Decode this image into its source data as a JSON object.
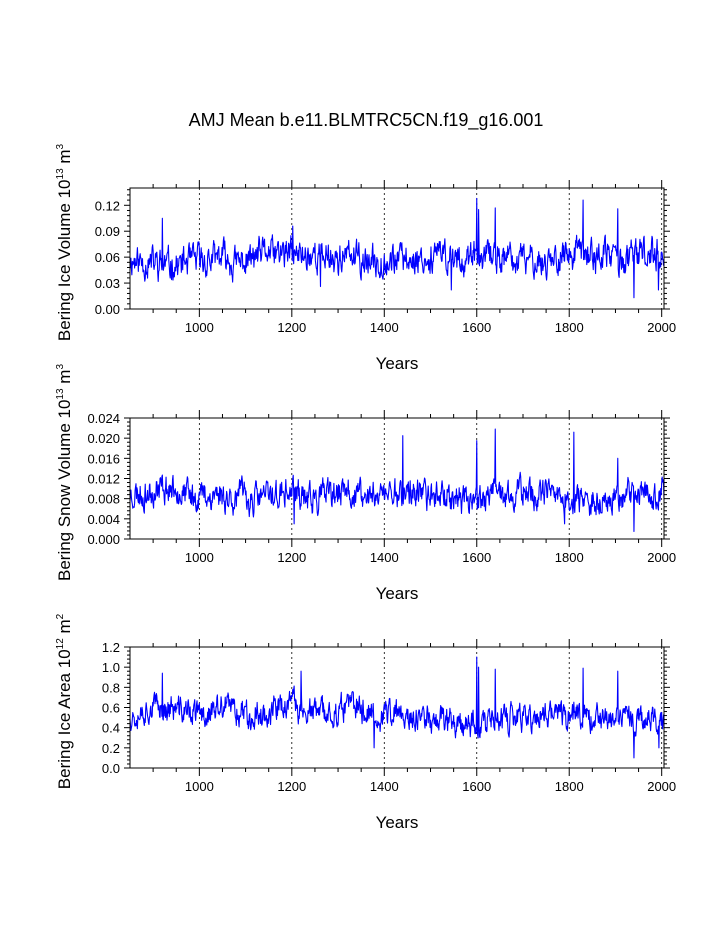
{
  "figure": {
    "title": "AMJ Mean b.e11.BLMTRC5CN.f19_g16.001"
  },
  "chart_data": [
    {
      "type": "line",
      "title": "",
      "xlabel": "Years",
      "ylabel": {
        "base": "Bering Ice Volume 10",
        "exp": "13",
        "unit": " m",
        "unit_exp": "3"
      },
      "xlim": [
        850,
        2005
      ],
      "ylim": [
        0,
        0.14
      ],
      "xticks": [
        1000,
        1200,
        1400,
        1600,
        1800,
        2000
      ],
      "xtick_labels": [
        "1000",
        "1200",
        "1400",
        "1600",
        "1800",
        "2000"
      ],
      "yticks": [
        0,
        0.03,
        0.06,
        0.09,
        0.12
      ],
      "ytick_labels": [
        "0.00",
        "0.03",
        "0.06",
        "0.09",
        "0.12"
      ],
      "grid": "vertical dashed at major x ticks",
      "line_color": "#0000ff",
      "series": [
        {
          "name": "Bering Ice Volume",
          "mean": 0.058,
          "amplitude": 0.016,
          "seed": 11,
          "events": [
            {
              "x": 920,
              "y": 0.105
            },
            {
              "x": 1202,
              "y": 0.096
            },
            {
              "x": 1600,
              "y": 0.128
            },
            {
              "x": 1604,
              "y": 0.115
            },
            {
              "x": 1640,
              "y": 0.117
            },
            {
              "x": 1830,
              "y": 0.126
            },
            {
              "x": 1905,
              "y": 0.116
            },
            {
              "x": 1940,
              "y": 0.013
            },
            {
              "x": 1993,
              "y": 0.022
            },
            {
              "x": 1545,
              "y": 0.022
            },
            {
              "x": 1262,
              "y": 0.026
            }
          ]
        }
      ]
    },
    {
      "type": "line",
      "title": "",
      "xlabel": "Years",
      "ylabel": {
        "base": "Bering Snow Volume 10",
        "exp": "13",
        "unit": " m",
        "unit_exp": "3"
      },
      "xlim": [
        850,
        2005
      ],
      "ylim": [
        0,
        0.024
      ],
      "xticks": [
        1000,
        1200,
        1400,
        1600,
        1800,
        2000
      ],
      "xtick_labels": [
        "1000",
        "1200",
        "1400",
        "1600",
        "1800",
        "2000"
      ],
      "yticks": [
        0,
        0.004,
        0.008,
        0.012,
        0.016,
        0.02,
        0.024
      ],
      "ytick_labels": [
        "0.000",
        "0.004",
        "0.008",
        "0.012",
        "0.016",
        "0.020",
        "0.024"
      ],
      "grid": "vertical dashed at major x ticks",
      "line_color": "#0000ff",
      "series": [
        {
          "name": "Bering Snow Volume",
          "mean": 0.0088,
          "amplitude": 0.0026,
          "seed": 23,
          "events": [
            {
              "x": 1440,
              "y": 0.0205
            },
            {
              "x": 1600,
              "y": 0.0195
            },
            {
              "x": 1640,
              "y": 0.0218
            },
            {
              "x": 1810,
              "y": 0.0212
            },
            {
              "x": 1905,
              "y": 0.016
            },
            {
              "x": 1940,
              "y": 0.0015
            },
            {
              "x": 1790,
              "y": 0.003
            },
            {
              "x": 1205,
              "y": 0.003
            }
          ]
        }
      ]
    },
    {
      "type": "line",
      "title": "",
      "xlabel": "Years",
      "ylabel": {
        "base": "Bering Ice Area 10",
        "exp": "12",
        "unit": " m",
        "unit_exp": "2"
      },
      "xlim": [
        850,
        2005
      ],
      "ylim": [
        0,
        1.2
      ],
      "xticks": [
        1000,
        1200,
        1400,
        1600,
        1800,
        2000
      ],
      "xtick_labels": [
        "1000",
        "1200",
        "1400",
        "1600",
        "1800",
        "2000"
      ],
      "yticks": [
        0,
        0.2,
        0.4,
        0.6,
        0.8,
        1.0,
        1.2
      ],
      "ytick_labels": [
        "0.0",
        "0.2",
        "0.4",
        "0.6",
        "0.8",
        "1.0",
        "1.2"
      ],
      "grid": "vertical dashed at major x ticks",
      "line_color": "#0000ff",
      "series": [
        {
          "name": "Bering Ice Area",
          "mean": 0.54,
          "amplitude": 0.12,
          "seed": 37,
          "events": [
            {
              "x": 920,
              "y": 0.94
            },
            {
              "x": 1220,
              "y": 0.96
            },
            {
              "x": 1600,
              "y": 1.1
            },
            {
              "x": 1604,
              "y": 1.0
            },
            {
              "x": 1640,
              "y": 0.98
            },
            {
              "x": 1830,
              "y": 0.99
            },
            {
              "x": 1905,
              "y": 0.96
            },
            {
              "x": 1940,
              "y": 0.1
            },
            {
              "x": 1378,
              "y": 0.2
            },
            {
              "x": 1994,
              "y": 0.2
            }
          ]
        }
      ]
    }
  ]
}
